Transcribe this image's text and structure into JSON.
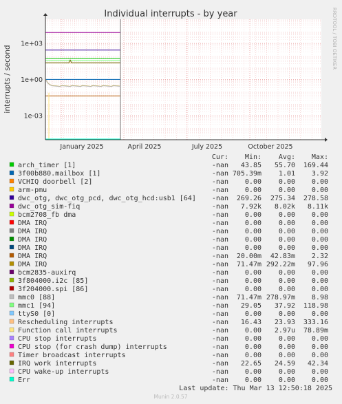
{
  "chart_data": {
    "type": "line",
    "title": "Individual interrupts - by year",
    "ylabel": "interrupts / second",
    "side_label": "RRDTOOL / TOBI OETIKER",
    "y_scale": "log",
    "ylim": [
      1e-05,
      100000
    ],
    "y_ticks": [
      {
        "value": 1000,
        "label": "1e+03"
      },
      {
        "value": 1,
        "label": "1e+00"
      },
      {
        "value": 0.001,
        "label": "1e-03"
      }
    ],
    "x_ticks": [
      "January 2025",
      "April 2025",
      "July 2025",
      "October 2025"
    ],
    "grid": true,
    "legend_header": {
      "cur": "Cur:",
      "min": "Min:",
      "avg": "Avg:",
      "max": "Max:"
    },
    "series": [
      {
        "name": "arch_timer [1]",
        "color": "#00cc00",
        "cur": "-nan",
        "min": "43.85",
        "avg": "55.70",
        "max": "169.44"
      },
      {
        "name": "3f00b880.mailbox [1]",
        "color": "#0066b3",
        "cur": "-nan",
        "min": "705.39m",
        "avg": "1.01",
        "max": "3.92"
      },
      {
        "name": "VCHIQ doorbell [2]",
        "color": "#ff8000",
        "cur": "-nan",
        "min": "0.00",
        "avg": "0.00",
        "max": "0.00"
      },
      {
        "name": "arm-pmu",
        "color": "#ffcc00",
        "cur": "-nan",
        "min": "0.00",
        "avg": "0.00",
        "max": "0.00"
      },
      {
        "name": "dwc_otg, dwc_otg_pcd, dwc_otg_hcd:usb1 [64]",
        "color": "#330099",
        "cur": "-nan",
        "min": "269.26",
        "avg": "275.34",
        "max": "278.58"
      },
      {
        "name": "dwc_otg_sim-fiq",
        "color": "#990099",
        "cur": "-nan",
        "min": "7.92k",
        "avg": "8.02k",
        "max": "8.11k"
      },
      {
        "name": "bcm2708_fb dma",
        "color": "#ccff00",
        "cur": "-nan",
        "min": "0.00",
        "avg": "0.00",
        "max": "0.00"
      },
      {
        "name": "DMA IRQ",
        "color": "#ff0000",
        "cur": "-nan",
        "min": "0.00",
        "avg": "0.00",
        "max": "0.00"
      },
      {
        "name": "DMA IRQ",
        "color": "#808080",
        "cur": "-nan",
        "min": "0.00",
        "avg": "0.00",
        "max": "0.00"
      },
      {
        "name": "DMA IRQ",
        "color": "#008f00",
        "cur": "-nan",
        "min": "0.00",
        "avg": "0.00",
        "max": "0.00"
      },
      {
        "name": "DMA IRQ",
        "color": "#00487d",
        "cur": "-nan",
        "min": "0.00",
        "avg": "0.00",
        "max": "0.00"
      },
      {
        "name": "DMA IRQ",
        "color": "#b35a00",
        "cur": "-nan",
        "min": "20.00m",
        "avg": "42.83m",
        "max": "2.32"
      },
      {
        "name": "DMA IRQ",
        "color": "#b38f00",
        "cur": "-nan",
        "min": "71.47m",
        "avg": "292.22m",
        "max": "97.96"
      },
      {
        "name": "bcm2835-auxirq",
        "color": "#6b006b",
        "cur": "-nan",
        "min": "0.00",
        "avg": "0.00",
        "max": "0.00"
      },
      {
        "name": "3f804000.i2c [85]",
        "color": "#8fb300",
        "cur": "-nan",
        "min": "0.00",
        "avg": "0.00",
        "max": "0.00"
      },
      {
        "name": "3f204000.spi [86]",
        "color": "#b30000",
        "cur": "-nan",
        "min": "0.00",
        "avg": "0.00",
        "max": "0.00"
      },
      {
        "name": "mmc0 [88]",
        "color": "#bebebe",
        "cur": "-nan",
        "min": "71.47m",
        "avg": "278.97m",
        "max": "8.98"
      },
      {
        "name": "mmc1 [94]",
        "color": "#80ff80",
        "cur": "-nan",
        "min": "29.05",
        "avg": "37.92",
        "max": "118.98"
      },
      {
        "name": "ttyS0 [0]",
        "color": "#80c9ff",
        "cur": "-nan",
        "min": "0.00",
        "avg": "0.00",
        "max": "0.00"
      },
      {
        "name": "Rescheduling interrupts",
        "color": "#ffc080",
        "cur": "-nan",
        "min": "16.43",
        "avg": "23.93",
        "max": "333.16"
      },
      {
        "name": "Function call interrupts",
        "color": "#ffe680",
        "cur": "-nan",
        "min": "0.00",
        "avg": "2.97u",
        "max": "78.89m"
      },
      {
        "name": "CPU stop interrupts",
        "color": "#aa80ff",
        "cur": "-nan",
        "min": "0.00",
        "avg": "0.00",
        "max": "0.00"
      },
      {
        "name": "CPU stop (for crash dump) interrupts",
        "color": "#ee00cc",
        "cur": "-nan",
        "min": "0.00",
        "avg": "0.00",
        "max": "0.00"
      },
      {
        "name": "Timer broadcast interrupts",
        "color": "#ff8080",
        "cur": "-nan",
        "min": "0.00",
        "avg": "0.00",
        "max": "0.00"
      },
      {
        "name": "IRQ work interrupts",
        "color": "#666600",
        "cur": "-nan",
        "min": "22.65",
        "avg": "24.59",
        "max": "42.34"
      },
      {
        "name": "CPU wake-up interrupts",
        "color": "#ffbfff",
        "cur": "-nan",
        "min": "0.00",
        "avg": "0.00",
        "max": "0.00"
      },
      {
        "name": "Err",
        "color": "#00ffcc",
        "cur": "-nan",
        "min": "0.00",
        "avg": "0.00",
        "max": "0.00"
      }
    ],
    "last_update": "Last update: Thu Mar 13 12:50:18 2025",
    "footer": "Munin 2.0.57"
  }
}
